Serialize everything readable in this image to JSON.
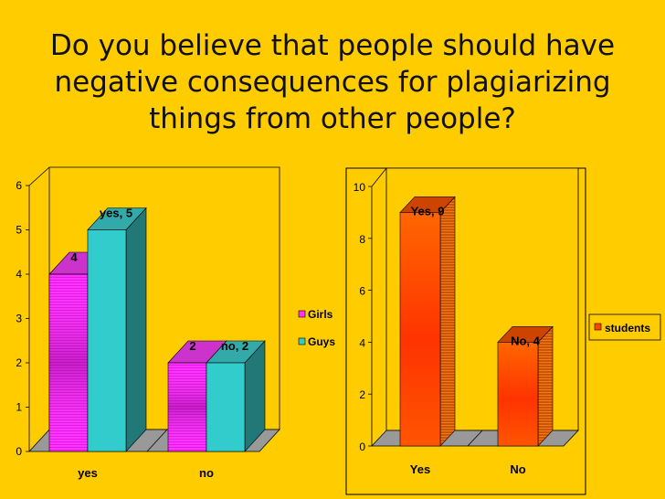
{
  "slide": {
    "title": "Do you believe that people should have negative consequences for plagiarizing things from other people?"
  },
  "colors": {
    "background": "#FFCC00",
    "girls": "#FF33FF",
    "guys": "#33CCCC",
    "students": "#FF4400",
    "students_edge": "#FF9933"
  },
  "chart_data": [
    {
      "type": "bar",
      "categories": [
        "yes",
        "no"
      ],
      "series": [
        {
          "name": "Girls",
          "values": [
            4,
            2
          ],
          "labels": [
            "4",
            "2"
          ]
        },
        {
          "name": "Guys",
          "values": [
            5,
            2
          ],
          "labels": [
            "yes, 5",
            "no, 2"
          ]
        }
      ],
      "ylim": [
        0,
        6
      ],
      "yticks": [
        "0",
        "1",
        "2",
        "3",
        "4",
        "5",
        "6"
      ],
      "legend": [
        "Girls",
        "Guys"
      ],
      "legend_position": "right",
      "grid": false,
      "style": "3d-clustered"
    },
    {
      "type": "bar",
      "categories": [
        "Yes",
        "No"
      ],
      "series": [
        {
          "name": "students",
          "values": [
            9,
            4
          ],
          "labels": [
            "Yes, 9",
            "No, 4"
          ]
        }
      ],
      "ylim": [
        0,
        10
      ],
      "yticks": [
        "0",
        "2",
        "4",
        "6",
        "8",
        "10"
      ],
      "legend": [
        "students"
      ],
      "legend_position": "right",
      "grid": false,
      "style": "3d-column"
    }
  ]
}
